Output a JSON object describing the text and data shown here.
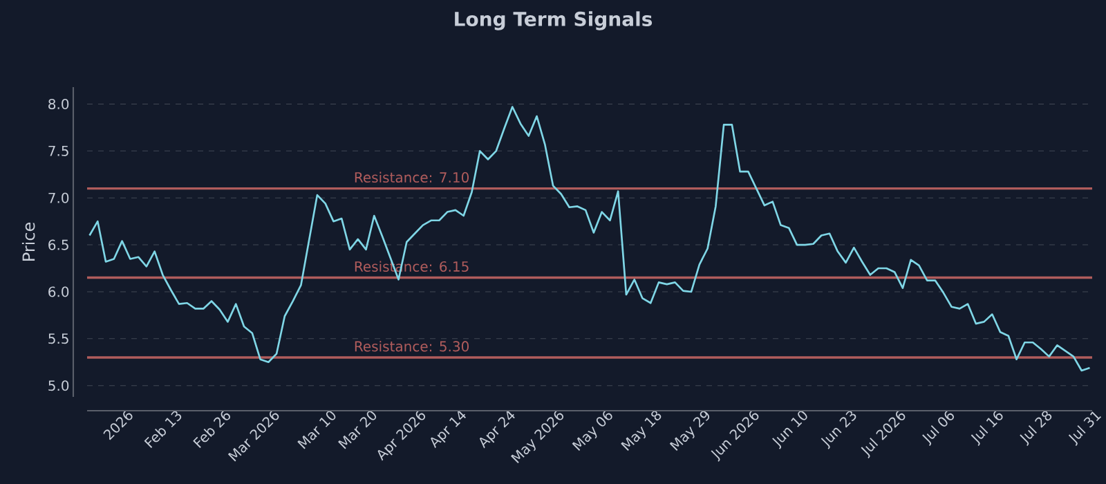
{
  "chart_data": {
    "type": "line",
    "title": "Long Term Signals",
    "ylabel": "Price",
    "categories": [
      null,
      null,
      null,
      "2026",
      null,
      null,
      null,
      null,
      null,
      "Feb 13",
      null,
      null,
      null,
      null,
      null,
      "Feb 26",
      null,
      null,
      null,
      null,
      null,
      "Mar 2026",
      null,
      null,
      null,
      null,
      null,
      null,
      "Mar 10",
      null,
      null,
      null,
      null,
      "Mar 20",
      null,
      null,
      null,
      null,
      null,
      "Apr 2026",
      null,
      null,
      null,
      null,
      "Apr 14",
      null,
      null,
      null,
      null,
      null,
      "Apr 24",
      null,
      null,
      null,
      null,
      null,
      "May 2026",
      null,
      null,
      null,
      null,
      null,
      "May 06",
      null,
      null,
      null,
      null,
      null,
      "May 18",
      null,
      null,
      null,
      null,
      null,
      "May 29",
      null,
      null,
      null,
      null,
      null,
      "Jun 2026",
      null,
      null,
      null,
      null,
      null,
      "Jun 10",
      null,
      null,
      null,
      null,
      null,
      "Jun 23",
      null,
      null,
      null,
      null,
      null,
      "Jul 2026",
      null,
      null,
      null,
      null,
      null,
      "Jul 06",
      null,
      null,
      null,
      null,
      null,
      "Jul 16",
      null,
      null,
      null,
      null,
      null,
      "Jul 28",
      null,
      null,
      null,
      null,
      null,
      "Jul 31",
      null
    ],
    "series": [
      {
        "color": "#7fd6e6",
        "values": [
          6.6,
          6.75,
          6.32,
          6.35,
          6.54,
          6.35,
          6.37,
          6.27,
          6.43,
          6.18,
          6.02,
          5.87,
          5.88,
          5.82,
          5.82,
          5.9,
          5.81,
          5.68,
          5.87,
          5.63,
          5.56,
          5.28,
          5.25,
          5.34,
          5.74,
          5.9,
          6.07,
          6.55,
          7.03,
          6.94,
          6.75,
          6.78,
          6.45,
          6.56,
          6.45,
          6.81,
          6.59,
          6.36,
          6.13,
          6.53,
          6.62,
          6.71,
          6.76,
          6.76,
          6.85,
          6.87,
          6.81,
          7.06,
          7.5,
          7.41,
          7.5,
          7.74,
          7.97,
          7.79,
          7.66,
          7.87,
          7.57,
          7.13,
          7.04,
          6.9,
          6.91,
          6.87,
          6.63,
          6.85,
          6.76,
          7.07,
          5.97,
          6.13,
          5.93,
          5.88,
          6.1,
          6.08,
          6.1,
          6.01,
          6.0,
          6.29,
          6.46,
          6.91,
          7.78,
          7.78,
          7.28,
          7.28,
          7.1,
          6.92,
          6.96,
          6.71,
          6.68,
          6.5,
          6.5,
          6.51,
          6.6,
          6.62,
          6.43,
          6.31,
          6.47,
          6.32,
          6.18,
          6.25,
          6.25,
          6.21,
          6.04,
          6.34,
          6.28,
          6.12,
          6.12,
          5.99,
          5.84,
          5.82,
          5.87,
          5.66,
          5.68,
          5.76,
          5.57,
          5.53,
          5.28,
          5.46,
          5.46,
          5.39,
          5.31,
          5.43,
          5.37,
          5.31,
          5.16,
          5.19
        ]
      }
    ],
    "ylim": [
      4.88,
      8.18
    ],
    "yticks": [
      {
        "value": 5.0,
        "label": "5.0"
      },
      {
        "value": 5.5,
        "label": "5.5"
      },
      {
        "value": 6.0,
        "label": "6.0"
      },
      {
        "value": 6.5,
        "label": "6.5"
      },
      {
        "value": 7.0,
        "label": "7.0"
      },
      {
        "value": 7.5,
        "label": "7.5"
      },
      {
        "value": 8.0,
        "label": "8.0"
      }
    ],
    "grid": "y",
    "ref_lines": [
      {
        "axis": "y",
        "value": 7.1,
        "label": "Resistance: 7.10",
        "color": "#b05c5c"
      },
      {
        "axis": "y",
        "value": 6.15,
        "label": "Resistance: 6.15",
        "color": "#b05c5c"
      },
      {
        "axis": "y",
        "value": 5.3,
        "label": "Resistance: 5.30",
        "color": "#b05c5c"
      }
    ]
  }
}
